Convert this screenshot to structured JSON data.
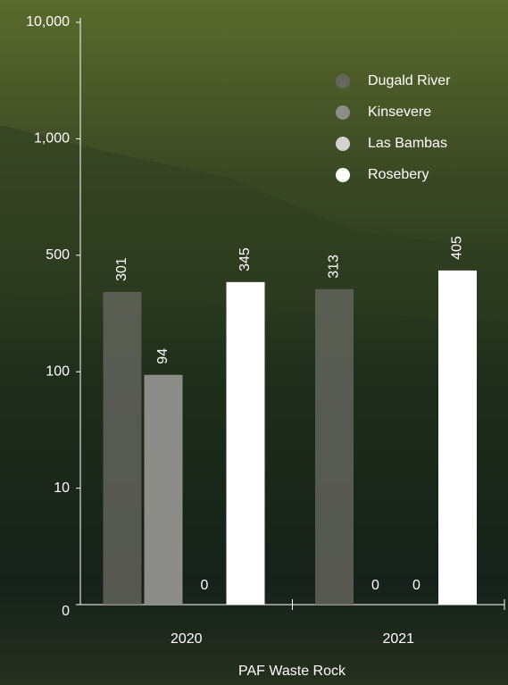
{
  "chart_data": {
    "type": "bar",
    "x_label": "PAF Waste Rock",
    "categories": [
      "2020",
      "2021"
    ],
    "series": [
      {
        "name": "Dugald River",
        "color": "#66665f",
        "values": [
          301,
          313
        ]
      },
      {
        "name": "Kinsevere",
        "color": "#8c8c88",
        "values": [
          94,
          0
        ]
      },
      {
        "name": "Las Bambas",
        "color": "#d2d2d0",
        "values": [
          0,
          0
        ]
      },
      {
        "name": "Rosebery",
        "color": "#ffffff",
        "values": [
          345,
          405
        ]
      }
    ],
    "ylim": [
      0,
      10000
    ],
    "yticks": [
      0,
      10,
      100,
      500,
      {
        "value": 1000,
        "label": "1,000"
      },
      {
        "value": 10000,
        "label": "10,000"
      }
    ],
    "legend": "top-right"
  }
}
